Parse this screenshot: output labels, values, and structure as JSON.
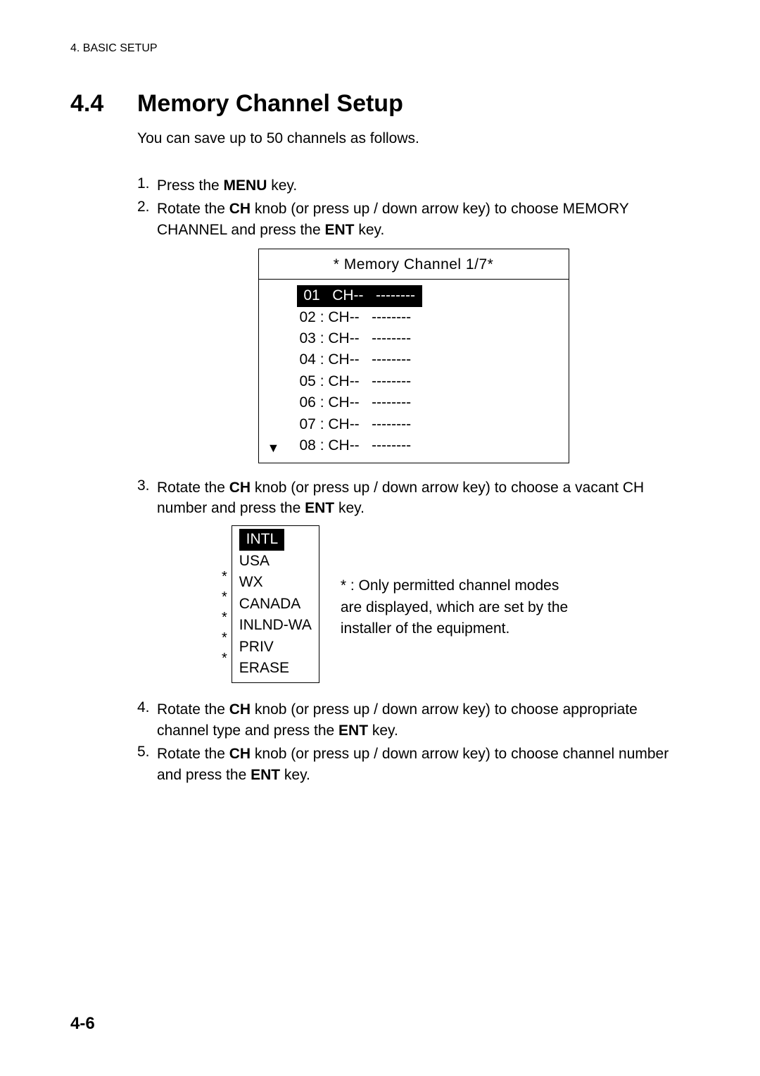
{
  "header": "4. BASIC SETUP",
  "section": {
    "number": "4.4",
    "title": "Memory Channel Setup"
  },
  "intro": "You can save up to 50 channels as follows.",
  "steps": {
    "s1": {
      "num": "1.",
      "a": "Press the ",
      "b": "MENU",
      "c": " key."
    },
    "s2": {
      "num": "2.",
      "a": "Rotate the ",
      "b": "CH",
      "c": " knob (or press up / down arrow key) to choose MEMORY CHANNEL and press the ",
      "d": "ENT",
      "e": " key."
    },
    "s3": {
      "num": "3.",
      "a": "Rotate the ",
      "b": "CH",
      "c": " knob (or press up / down arrow key) to choose a vacant CH number and press the ",
      "d": "ENT",
      "e": " key."
    },
    "s4": {
      "num": "4.",
      "a": "Rotate the ",
      "b": "CH",
      "c": " knob (or press up / down arrow key) to choose appropriate channel type and press the ",
      "d": "ENT",
      "e": " key."
    },
    "s5": {
      "num": "5.",
      "a": "Rotate the ",
      "b": "CH",
      "c": " knob (or press up / down arrow key) to choose channel number and press the ",
      "d": "ENT",
      "e": " key."
    }
  },
  "memDiagram": {
    "title": "* Memory Channel 1/7*",
    "rows": [
      " 01   CH--   -------- ",
      "02 : CH--   --------",
      "03 : CH--   --------",
      "04 : CH--   --------",
      "05 : CH--   --------",
      "06 : CH--   --------",
      "07 : CH--   --------",
      "08 : CH--   --------"
    ],
    "arrow": "▼"
  },
  "typeBox": {
    "stars": "\n*\n*\n*\n*\n*\n ",
    "items": [
      " INTL ",
      "USA",
      "WX",
      "CANADA",
      "INLND-WA",
      "PRIV",
      "ERASE"
    ]
  },
  "note": "* : Only permitted channel modes are displayed, which are set by the installer of the equipment.",
  "pageNumber": "4-6"
}
